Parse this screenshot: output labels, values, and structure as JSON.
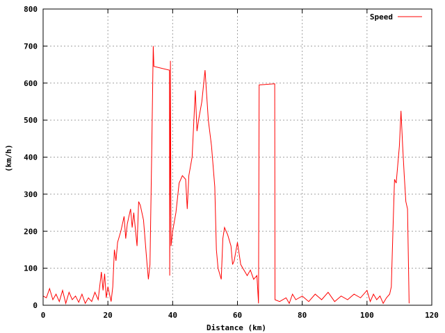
{
  "chart_data": {
    "type": "line",
    "title": "",
    "xlabel": "Distance (km)",
    "ylabel": "(km/h)",
    "xlim": [
      0,
      120
    ],
    "ylim": [
      0,
      800
    ],
    "x_ticks": [
      0,
      20,
      40,
      60,
      80,
      100,
      120
    ],
    "y_ticks": [
      0,
      100,
      200,
      300,
      400,
      500,
      600,
      700,
      800
    ],
    "grid": true,
    "legend_position": "top-right",
    "series": [
      {
        "name": "Speed",
        "color": "#ff0000",
        "points": [
          [
            0,
            25
          ],
          [
            1,
            20
          ],
          [
            2,
            45
          ],
          [
            3,
            15
          ],
          [
            4,
            30
          ],
          [
            5,
            10
          ],
          [
            6,
            40
          ],
          [
            7,
            5
          ],
          [
            8,
            35
          ],
          [
            9,
            15
          ],
          [
            10,
            25
          ],
          [
            11,
            8
          ],
          [
            12,
            30
          ],
          [
            13,
            5
          ],
          [
            14,
            20
          ],
          [
            15,
            10
          ],
          [
            16,
            35
          ],
          [
            17,
            15
          ],
          [
            18,
            90
          ],
          [
            18.5,
            40
          ],
          [
            19,
            85
          ],
          [
            19.5,
            20
          ],
          [
            20,
            50
          ],
          [
            21,
            10
          ],
          [
            21.5,
            50
          ],
          [
            22,
            150
          ],
          [
            22.5,
            120
          ],
          [
            23,
            170
          ],
          [
            24,
            200
          ],
          [
            25,
            240
          ],
          [
            25.5,
            180
          ],
          [
            26,
            220
          ],
          [
            27,
            260
          ],
          [
            27.5,
            210
          ],
          [
            28,
            250
          ],
          [
            29,
            160
          ],
          [
            29.5,
            280
          ],
          [
            30,
            270
          ],
          [
            31,
            230
          ],
          [
            32,
            120
          ],
          [
            32.5,
            70
          ],
          [
            33,
            110
          ],
          [
            33.5,
            400
          ],
          [
            34,
            700
          ],
          [
            34.2,
            645
          ],
          [
            39,
            635
          ],
          [
            39.1,
            80
          ],
          [
            39.3,
            660
          ],
          [
            39.5,
            160
          ],
          [
            40,
            200
          ],
          [
            41,
            250
          ],
          [
            42,
            330
          ],
          [
            43,
            350
          ],
          [
            44,
            340
          ],
          [
            44.5,
            260
          ],
          [
            45,
            350
          ],
          [
            46,
            400
          ],
          [
            47,
            580
          ],
          [
            47.5,
            470
          ],
          [
            48,
            500
          ],
          [
            49,
            550
          ],
          [
            50,
            635
          ],
          [
            51,
            500
          ],
          [
            52,
            430
          ],
          [
            53,
            320
          ],
          [
            53.5,
            150
          ],
          [
            54,
            100
          ],
          [
            55,
            70
          ],
          [
            55.5,
            180
          ],
          [
            56,
            210
          ],
          [
            57,
            190
          ],
          [
            58,
            160
          ],
          [
            58.5,
            110
          ],
          [
            59,
            120
          ],
          [
            60,
            170
          ],
          [
            61,
            110
          ],
          [
            62,
            95
          ],
          [
            63,
            80
          ],
          [
            64,
            95
          ],
          [
            65,
            70
          ],
          [
            66,
            80
          ],
          [
            66.5,
            5
          ],
          [
            66.7,
            595
          ],
          [
            71.5,
            598
          ],
          [
            71.6,
            15
          ],
          [
            73,
            10
          ],
          [
            75,
            20
          ],
          [
            76,
            5
          ],
          [
            77,
            30
          ],
          [
            78,
            15
          ],
          [
            80,
            25
          ],
          [
            82,
            10
          ],
          [
            84,
            30
          ],
          [
            86,
            15
          ],
          [
            88,
            35
          ],
          [
            90,
            10
          ],
          [
            92,
            25
          ],
          [
            94,
            15
          ],
          [
            96,
            30
          ],
          [
            98,
            20
          ],
          [
            100,
            40
          ],
          [
            101,
            10
          ],
          [
            102,
            30
          ],
          [
            103,
            15
          ],
          [
            104,
            25
          ],
          [
            105,
            5
          ],
          [
            106,
            20
          ],
          [
            107,
            30
          ],
          [
            107.5,
            50
          ],
          [
            108,
            200
          ],
          [
            108.5,
            340
          ],
          [
            109,
            330
          ],
          [
            109.5,
            380
          ],
          [
            110,
            430
          ],
          [
            110.5,
            525
          ],
          [
            111,
            430
          ],
          [
            111.5,
            350
          ],
          [
            112,
            280
          ],
          [
            112.5,
            260
          ],
          [
            113,
            5
          ]
        ]
      }
    ]
  }
}
